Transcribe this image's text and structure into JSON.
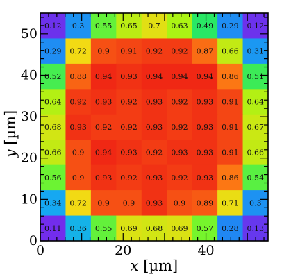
{
  "chart_data": {
    "type": "heatmap",
    "title": "",
    "xlabel": "x [µm]",
    "xlabel_var": "x",
    "xlabel_unit": "[µm]",
    "ylabel": "y [µm]",
    "ylabel_var": "y",
    "ylabel_unit": "[µm]",
    "xlim": [
      0,
      55
    ],
    "ylim": [
      0,
      55
    ],
    "x_ticks": [
      0,
      20,
      40
    ],
    "y_ticks": [
      0,
      10,
      20,
      30,
      40,
      50
    ],
    "x_ticks_label": [
      "0",
      "20",
      "40"
    ],
    "y_ticks_label": [
      "0",
      "10",
      "20",
      "30",
      "40",
      "50"
    ],
    "cell_size": 6.111,
    "grid": false,
    "colormap": "rainbow",
    "color_range": [
      0.1,
      0.94
    ],
    "rows_top_to_bottom": [
      [
        "0.12",
        "0.3",
        "0.55",
        "0.65",
        "0.7",
        "0.63",
        "0.49",
        "0.29",
        "0.12"
      ],
      [
        "0.29",
        "0.72",
        "0.9",
        "0.91",
        "0.92",
        "0.92",
        "0.87",
        "0.66",
        "0.31"
      ],
      [
        "0.52",
        "0.88",
        "0.94",
        "0.93",
        "0.94",
        "0.94",
        "0.94",
        "0.86",
        "0.51"
      ],
      [
        "0.64",
        "0.92",
        "0.93",
        "0.92",
        "0.93",
        "0.92",
        "0.93",
        "0.91",
        "0.64"
      ],
      [
        "0.68",
        "0.93",
        "0.92",
        "0.92",
        "0.93",
        "0.92",
        "0.93",
        "0.91",
        "0.67"
      ],
      [
        "0.66",
        "0.9",
        "0.94",
        "0.93",
        "0.92",
        "0.93",
        "0.93",
        "0.91",
        "0.66"
      ],
      [
        "0.56",
        "0.9",
        "0.93",
        "0.92",
        "0.93",
        "0.92",
        "0.93",
        "0.86",
        "0.54"
      ],
      [
        "0.34",
        "0.72",
        "0.9",
        "0.9",
        "0.93",
        "0.9",
        "0.89",
        "0.71",
        "0.3"
      ],
      [
        "0.11",
        "0.36",
        "0.55",
        "0.69",
        "0.68",
        "0.69",
        "0.57",
        "0.28",
        "0.13"
      ]
    ]
  }
}
